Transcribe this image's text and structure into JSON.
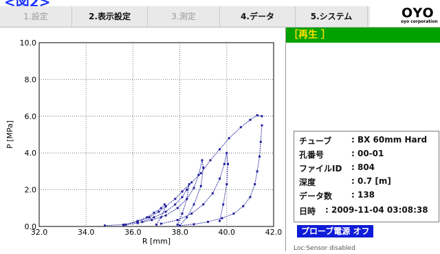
{
  "caption": "<図2>",
  "tabs": [
    {
      "label": "1.設定",
      "state": "disabled"
    },
    {
      "label": "2.表示設定",
      "state": "active"
    },
    {
      "label": "3.測定",
      "state": "disabled"
    },
    {
      "label": "4.データ",
      "state": "active"
    },
    {
      "label": "5.システム",
      "state": "active"
    }
  ],
  "logo": {
    "big": "OYO",
    "small": "oyo corporation"
  },
  "panel": {
    "header": "［再生 ］",
    "info": {
      "tube": {
        "key": "チューブ",
        "value": ": BX 60mm Hard"
      },
      "hole": {
        "key": "孔番号",
        "value": ": 00-01"
      },
      "file": {
        "key": "ファイルID",
        "value": ": 804"
      },
      "depth": {
        "key": "深度",
        "value": ": 0.7 [m]"
      },
      "count": {
        "key": "データ数",
        "value": ": 138"
      },
      "datetime": {
        "key": "日時",
        "value": ": 2009-11-04 03:08:38"
      }
    },
    "probe_button": "プローブ電源 オフ",
    "status": "Loc:Sensor disabled"
  },
  "chart_data": {
    "type": "line",
    "xlabel": "R [mm]",
    "ylabel": "P [MPa]",
    "xlim": [
      32.0,
      42.0
    ],
    "ylim": [
      0.0,
      10.0
    ],
    "xticks": [
      "32.0",
      "34.0",
      "36.0",
      "38.0",
      "40.0",
      "42.0"
    ],
    "yticks": [
      "0.0",
      "2.0",
      "4.0",
      "6.0",
      "8.0",
      "10.0"
    ],
    "grid": true,
    "color": "#1f1f9c",
    "series": [
      {
        "x": [
          34.8,
          35.6,
          36.2,
          36.7,
          37.1,
          37.4,
          37.8,
          38.1,
          38.5,
          38.9,
          39.3,
          39.7,
          40.1,
          40.6,
          41.0,
          41.3,
          41.5
        ],
        "y": [
          0.05,
          0.1,
          0.25,
          0.5,
          0.8,
          1.1,
          1.5,
          1.9,
          2.4,
          2.9,
          3.6,
          4.2,
          4.8,
          5.4,
          5.8,
          6.05,
          6.0
        ]
      },
      {
        "x": [
          41.5,
          41.45,
          41.4,
          41.3,
          41.2,
          41.0,
          40.7,
          40.3,
          39.8,
          39.2,
          38.6,
          38.0
        ],
        "y": [
          5.5,
          4.6,
          3.8,
          3.0,
          2.3,
          1.6,
          1.1,
          0.7,
          0.45,
          0.25,
          0.12,
          0.05
        ]
      },
      {
        "x": [
          38.0,
          38.3,
          38.6,
          38.9,
          39.0,
          38.95,
          38.8,
          38.6,
          38.3,
          37.9,
          37.4,
          36.8,
          36.2,
          35.6
        ],
        "y": [
          0.05,
          0.5,
          1.2,
          2.2,
          3.2,
          3.6,
          2.8,
          2.1,
          1.5,
          1.0,
          0.6,
          0.35,
          0.18,
          0.08
        ]
      },
      {
        "x": [
          39.7,
          39.85,
          40.0,
          40.05,
          40.0,
          39.9,
          39.7,
          39.4,
          39.0,
          38.5,
          37.9,
          37.2
        ],
        "y": [
          0.3,
          1.2,
          2.3,
          3.4,
          4.0,
          3.4,
          2.6,
          1.8,
          1.2,
          0.7,
          0.35,
          0.15
        ]
      },
      {
        "x": [
          37.9,
          38.1,
          38.3,
          38.4,
          38.3,
          38.1,
          37.8,
          37.4,
          36.9,
          36.4
        ],
        "y": [
          0.1,
          0.7,
          1.5,
          2.3,
          2.0,
          1.6,
          1.2,
          0.8,
          0.5,
          0.25
        ]
      },
      {
        "x": [
          37.0,
          37.2,
          37.4,
          37.35,
          37.2,
          36.9,
          36.6,
          36.2,
          35.7
        ],
        "y": [
          0.1,
          0.5,
          1.1,
          1.2,
          1.0,
          0.75,
          0.5,
          0.3,
          0.1
        ]
      }
    ]
  }
}
